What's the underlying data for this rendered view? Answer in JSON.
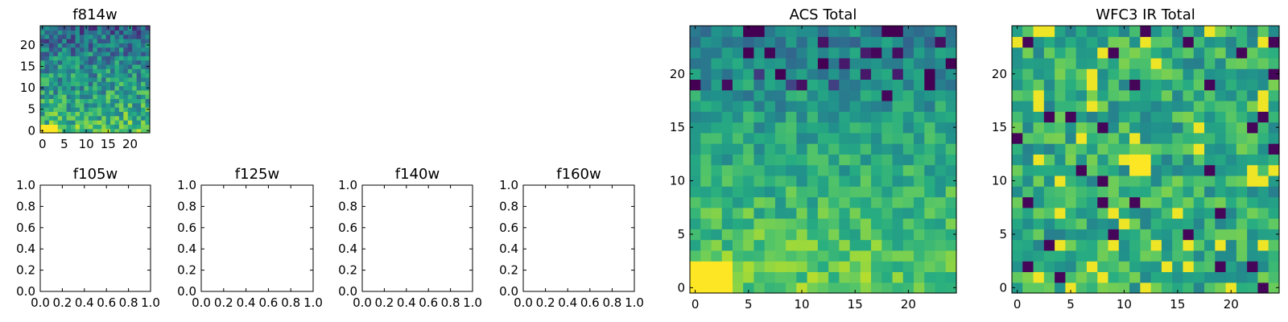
{
  "chart_data": [
    {
      "id": "f814w",
      "type": "heatmap",
      "title": "f814w",
      "grid_size": 25,
      "colormap": "viridis",
      "xticks": [
        "0",
        "5",
        "10",
        "15",
        "20"
      ],
      "yticks": [
        "0",
        "5",
        "10",
        "15",
        "20"
      ],
      "xlim": [
        -0.5,
        24.5
      ],
      "ylim": [
        -0.5,
        24.5
      ],
      "value_scale": "normalized 0-1 (no colorbar shown)",
      "seed": 814
    },
    {
      "id": "f105w",
      "type": "empty",
      "title": "f105w",
      "xticks": [
        "0.0",
        "0.2",
        "0.4",
        "0.6",
        "0.8",
        "1.0"
      ],
      "yticks": [
        "0.0",
        "0.2",
        "0.4",
        "0.6",
        "0.8",
        "1.0"
      ],
      "xlim": [
        0,
        1
      ],
      "ylim": [
        0,
        1
      ]
    },
    {
      "id": "f125w",
      "type": "empty",
      "title": "f125w",
      "xticks": [
        "0.0",
        "0.2",
        "0.4",
        "0.6",
        "0.8",
        "1.0"
      ],
      "yticks": [
        "0.0",
        "0.2",
        "0.4",
        "0.6",
        "0.8",
        "1.0"
      ],
      "xlim": [
        0,
        1
      ],
      "ylim": [
        0,
        1
      ]
    },
    {
      "id": "f140w",
      "type": "empty",
      "title": "f140w",
      "xticks": [
        "0.0",
        "0.2",
        "0.4",
        "0.6",
        "0.8",
        "1.0"
      ],
      "yticks": [
        "0.0",
        "0.2",
        "0.4",
        "0.6",
        "0.8",
        "1.0"
      ],
      "xlim": [
        0,
        1
      ],
      "ylim": [
        0,
        1
      ]
    },
    {
      "id": "f160w",
      "type": "empty",
      "title": "f160w",
      "xticks": [
        "0.0",
        "0.2",
        "0.4",
        "0.6",
        "0.8",
        "1.0"
      ],
      "yticks": [
        "0.0",
        "0.2",
        "0.4",
        "0.6",
        "0.8",
        "1.0"
      ],
      "xlim": [
        0,
        1
      ],
      "ylim": [
        0,
        1
      ]
    },
    {
      "id": "acs-total",
      "type": "heatmap",
      "title": "ACS Total",
      "grid_size": 25,
      "colormap": "viridis",
      "xticks": [
        "0",
        "5",
        "10",
        "15",
        "20"
      ],
      "yticks": [
        "0",
        "5",
        "10",
        "15",
        "20"
      ],
      "xlim": [
        -0.5,
        24.5
      ],
      "ylim": [
        -0.5,
        24.5
      ],
      "value_scale": "normalized 0-1 (no colorbar shown)",
      "seed": 137
    },
    {
      "id": "wfc3-ir-total",
      "type": "heatmap",
      "title": "WFC3 IR Total",
      "grid_size": 25,
      "colormap": "viridis",
      "xticks": [
        "0",
        "5",
        "10",
        "15",
        "20"
      ],
      "yticks": [
        "0",
        "5",
        "10",
        "15",
        "20"
      ],
      "xlim": [
        -0.5,
        24.5
      ],
      "ylim": [
        -0.5,
        24.5
      ],
      "value_scale": "normalized 0-1 (no colorbar shown)",
      "seed": 2718
    }
  ]
}
